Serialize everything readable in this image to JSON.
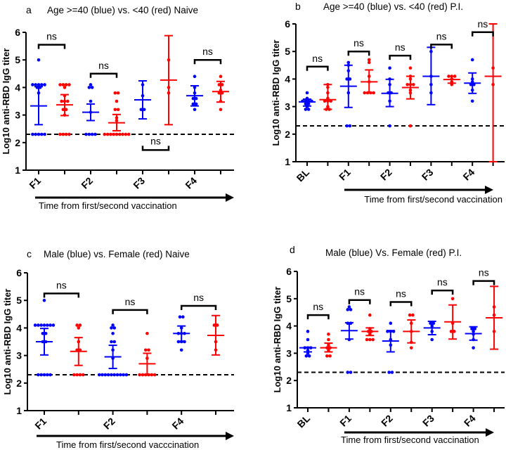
{
  "colors": {
    "blue": "#0000ff",
    "red": "#ff0000",
    "axis": "#000000"
  },
  "chart_data": [
    {
      "type": "scatter",
      "letter": "a",
      "title": "Age >=40 (blue) vs. <40 (red) Naive",
      "ylabel": "Log10 anti-RBD IgG titer",
      "xlabel": "Time from first/second vaccination",
      "ylim": [
        1,
        6
      ],
      "yticks": [
        "1",
        "2",
        "3",
        "4",
        "5",
        "6"
      ],
      "detection_limit": 2.3,
      "groups": [
        {
          "label": "F1",
          "color": "blue",
          "mean": 3.33,
          "sd": [
            2.65,
            4.03
          ],
          "points": [
            2.3,
            2.3,
            2.3,
            2.3,
            2.3,
            3.8,
            4.0,
            4.0,
            4.1,
            4.1,
            4.1,
            4.1,
            4.1,
            5.0
          ]
        },
        {
          "label": "",
          "color": "red",
          "mean": 3.37,
          "sd": [
            2.98,
            3.74
          ],
          "points": [
            2.3,
            2.3,
            2.3,
            2.3,
            3.0,
            3.2,
            3.2,
            3.5,
            3.5,
            3.5,
            3.7,
            4.0,
            4.1,
            4.1,
            4.1,
            4.1
          ]
        },
        {
          "label": "F2",
          "color": "blue",
          "mean": 3.1,
          "sd": [
            2.8,
            3.4
          ],
          "points": [
            2.3,
            2.3,
            2.3,
            2.3,
            3.1,
            3.5,
            4.0,
            4.0,
            4.1
          ]
        },
        {
          "label": "",
          "color": "red",
          "mean": 2.72,
          "sd": [
            2.43,
            3.02
          ],
          "points": [
            2.3,
            2.3,
            2.3,
            2.3,
            2.3,
            2.3,
            2.3,
            2.3,
            2.3,
            2.8,
            2.9,
            3.2,
            3.2,
            3.5,
            3.8,
            3.8
          ]
        },
        {
          "label": "F3",
          "color": "blue",
          "mean": 3.55,
          "sd": [
            2.86,
            4.24
          ],
          "points": [
            3.2,
            3.2,
            3.7,
            4.1
          ]
        },
        {
          "label": "",
          "color": "red",
          "mean": 4.27,
          "sd": [
            2.65,
            5.88
          ],
          "points": [
            3.8,
            4.0,
            5.0
          ]
        },
        {
          "label": "F4",
          "color": "blue",
          "mean": 3.7,
          "sd": [
            3.33,
            4.06
          ],
          "points": [
            3.2,
            3.4,
            3.4,
            3.6,
            3.6,
            3.8,
            4.0,
            4.4
          ]
        },
        {
          "label": "",
          "color": "red",
          "mean": 3.85,
          "sd": [
            3.47,
            4.22
          ],
          "points": [
            3.2,
            3.5,
            3.8,
            3.8,
            3.9,
            4.1,
            4.1,
            4.4
          ]
        }
      ],
      "comparisons": [
        {
          "pair": [
            0,
            1
          ],
          "y": 5.55,
          "label": "ns",
          "inverted": false
        },
        {
          "pair": [
            2,
            3
          ],
          "y": 4.5,
          "label": "ns",
          "inverted": false
        },
        {
          "pair": [
            4,
            5
          ],
          "y": 1.73,
          "label": "ns",
          "inverted": true
        },
        {
          "pair": [
            6,
            7
          ],
          "y": 5.0,
          "label": "ns",
          "inverted": false
        }
      ]
    },
    {
      "type": "scatter",
      "letter": "b",
      "title": "Age >=40 (blue) vs. <40 (red) P.I.",
      "ylabel": "Log10 anti-RBD IgG titer",
      "xlabel": "Time from first/second vaccination",
      "ylim": [
        1,
        6
      ],
      "yticks": [
        "1",
        "2",
        "3",
        "4",
        "5",
        "6"
      ],
      "detection_limit": 2.3,
      "groups": [
        {
          "label": "BL",
          "color": "blue",
          "mean": 3.17,
          "sd": [
            3.02,
            3.27
          ],
          "points": [
            2.9,
            2.9,
            3.0,
            3.1,
            3.1,
            3.2,
            3.2,
            3.2,
            3.2,
            3.3,
            3.5
          ]
        },
        {
          "label": "",
          "color": "red",
          "mean": 3.25,
          "sd": [
            2.9,
            3.8
          ],
          "points": [
            2.9,
            2.9,
            3.0,
            3.2,
            3.2,
            3.2,
            3.3,
            3.5,
            3.7,
            3.8
          ]
        },
        {
          "label": "F1",
          "color": "blue",
          "mean": 3.74,
          "sd": [
            2.97,
            4.5
          ],
          "points": [
            2.3,
            2.3,
            3.5,
            4.0,
            4.0,
            4.3,
            4.5,
            4.6
          ]
        },
        {
          "label": "",
          "color": "red",
          "mean": 3.9,
          "sd": [
            3.5,
            4.33
          ],
          "points": [
            3.5,
            3.5,
            3.5,
            3.5,
            3.9,
            4.1,
            4.6,
            4.7
          ]
        },
        {
          "label": "F2",
          "color": "blue",
          "mean": 3.48,
          "sd": [
            3.0,
            3.99
          ],
          "points": [
            2.3,
            3.2,
            3.5,
            3.5,
            3.8,
            4.0,
            4.4
          ]
        },
        {
          "label": "",
          "color": "red",
          "mean": 3.69,
          "sd": [
            3.28,
            4.1
          ],
          "points": [
            2.3,
            3.5,
            3.6,
            3.8,
            3.8,
            3.8,
            4.0,
            4.1,
            4.4
          ]
        },
        {
          "label": "F3",
          "color": "blue",
          "mean": 4.1,
          "sd": [
            3.07,
            5.15
          ],
          "points": [
            3.5,
            3.8,
            4.1,
            5.0
          ]
        },
        {
          "label": "",
          "color": "red",
          "mean": 3.98,
          "sd": [
            3.85,
            4.1
          ],
          "points": [
            3.8,
            3.9,
            4.0,
            4.1,
            4.1,
            4.1
          ]
        },
        {
          "label": "F4",
          "color": "blue",
          "mean": 3.85,
          "sd": [
            3.48,
            4.22
          ],
          "points": [
            3.2,
            3.6,
            3.8,
            3.8,
            3.9,
            4.0,
            4.7
          ]
        },
        {
          "label": "",
          "color": "red",
          "mean": 4.1,
          "sd": [
            1.0,
            6.0
          ],
          "points": [
            3.8,
            4.4
          ]
        }
      ],
      "comparisons": [
        {
          "pair": [
            0,
            1
          ],
          "y": 4.45,
          "label": "ns",
          "inverted": false
        },
        {
          "pair": [
            2,
            3
          ],
          "y": 5.0,
          "label": "ns",
          "inverted": false
        },
        {
          "pair": [
            4,
            5
          ],
          "y": 4.85,
          "label": "ns",
          "inverted": false
        },
        {
          "pair": [
            6,
            7
          ],
          "y": 5.25,
          "label": "ns",
          "inverted": false
        },
        {
          "pair": [
            8,
            9
          ],
          "y": 5.7,
          "label": "ns",
          "inverted": false
        }
      ]
    },
    {
      "type": "scatter",
      "letter": "c",
      "title": "Male (blue) vs. Female (red) Naive",
      "ylabel": "Log10 anti-RBD IgG titer",
      "xlabel": "Time from first/second vacccination",
      "ylim": [
        1,
        6
      ],
      "yticks": [
        "1",
        "2",
        "3",
        "4",
        "5",
        "6"
      ],
      "detection_limit": 2.3,
      "groups": [
        {
          "label": "F1",
          "color": "blue",
          "mean": 3.5,
          "sd": [
            3.02,
            3.98
          ],
          "points": [
            2.3,
            2.3,
            2.3,
            2.3,
            2.3,
            3.5,
            3.5,
            3.8,
            3.8,
            4.1,
            4.1,
            4.1,
            4.1,
            4.1,
            4.1,
            4.1,
            5.0
          ]
        },
        {
          "label": "",
          "color": "red",
          "mean": 3.15,
          "sd": [
            2.64,
            3.65
          ],
          "points": [
            2.3,
            2.3,
            2.3,
            2.3,
            3.2,
            3.2,
            3.5,
            4.0,
            4.1,
            4.1
          ]
        },
        {
          "label": "F2",
          "color": "blue",
          "mean": 2.95,
          "sd": [
            2.53,
            3.37
          ],
          "points": [
            2.3,
            2.3,
            2.3,
            2.3,
            2.3,
            2.3,
            2.3,
            2.3,
            2.3,
            2.3,
            2.9,
            3.2,
            3.5,
            3.5,
            3.8,
            4.0,
            4.0,
            4.1
          ]
        },
        {
          "label": "",
          "color": "red",
          "mean": 2.7,
          "sd": [
            2.3,
            3.08
          ],
          "points": [
            2.3,
            2.3,
            2.3,
            2.3,
            2.3,
            2.3,
            2.9,
            3.2,
            3.2,
            3.8
          ]
        },
        {
          "label": "F4",
          "color": "blue",
          "mean": 3.8,
          "sd": [
            3.52,
            4.07
          ],
          "points": [
            3.2,
            3.5,
            3.5,
            3.5,
            3.8,
            3.8,
            3.8,
            4.0,
            4.4,
            4.4
          ]
        },
        {
          "label": "",
          "color": "red",
          "mean": 3.73,
          "sd": [
            3.02,
            4.45
          ],
          "points": [
            3.2,
            3.5,
            4.1,
            4.1
          ]
        }
      ],
      "comparisons": [
        {
          "pair": [
            0,
            1
          ],
          "y": 5.25,
          "label": "ns",
          "inverted": false
        },
        {
          "pair": [
            2,
            3
          ],
          "y": 4.65,
          "label": "ns",
          "inverted": false
        },
        {
          "pair": [
            4,
            5
          ],
          "y": 4.8,
          "label": "ns",
          "inverted": false
        }
      ]
    },
    {
      "type": "scatter",
      "letter": "d",
      "title": "Male (blue) Vs. Female (red)  P.I.",
      "ylabel": "Log10 anti-RBD IgG titer",
      "xlabel": "Time from first/second vaccination",
      "ylim": [
        1,
        6
      ],
      "yticks": [
        "1",
        "2",
        "3",
        "4",
        "5",
        "6"
      ],
      "detection_limit": 2.3,
      "groups": [
        {
          "label": "BL",
          "color": "blue",
          "mean": 3.2,
          "sd": [
            3.05,
            3.22
          ],
          "points": [
            2.9,
            2.9,
            3.0,
            3.1,
            3.2,
            3.2,
            3.2,
            3.5,
            3.8
          ]
        },
        {
          "label": "",
          "color": "red",
          "mean": 3.2,
          "sd": [
            3.05,
            3.37
          ],
          "points": [
            2.9,
            2.9,
            3.1,
            3.2,
            3.2,
            3.3,
            3.5,
            3.7
          ]
        },
        {
          "label": "F1",
          "color": "blue",
          "mean": 3.83,
          "sd": [
            3.52,
            4.12
          ],
          "points": [
            2.3,
            2.3,
            3.5,
            4.1,
            4.1,
            4.6,
            4.6,
            4.7
          ]
        },
        {
          "label": "",
          "color": "red",
          "mean": 3.8,
          "sd": [
            3.65,
            3.93
          ],
          "points": [
            3.5,
            3.5,
            3.5,
            3.7,
            3.8,
            3.8,
            3.9,
            4.4
          ]
        },
        {
          "label": "F2",
          "color": "blue",
          "mean": 3.45,
          "sd": [
            3.05,
            3.83
          ],
          "points": [
            2.3,
            2.3,
            3.3,
            3.5,
            3.8,
            3.8,
            3.8,
            4.1
          ]
        },
        {
          "label": "",
          "color": "red",
          "mean": 3.8,
          "sd": [
            3.38,
            4.22
          ],
          "points": [
            3.2,
            3.4,
            3.8,
            4.1,
            4.4,
            4.4
          ]
        },
        {
          "label": "F3",
          "color": "blue",
          "mean": 3.93,
          "sd": [
            3.68,
            4.17
          ],
          "points": [
            3.5,
            3.8,
            4.0,
            4.1,
            4.1
          ]
        },
        {
          "label": "",
          "color": "red",
          "mean": 4.15,
          "sd": [
            3.52,
            4.77
          ],
          "points": [
            3.8,
            3.8,
            4.1,
            5.0
          ]
        },
        {
          "label": "F4",
          "color": "blue",
          "mean": 3.72,
          "sd": [
            3.48,
            3.97
          ],
          "points": [
            3.2,
            3.5,
            3.7,
            3.8,
            3.9,
            3.9
          ]
        },
        {
          "label": "",
          "color": "red",
          "mean": 4.3,
          "sd": [
            3.15,
            5.45
          ],
          "points": [
            3.8,
            4.4,
            4.7
          ]
        }
      ],
      "comparisons": [
        {
          "pair": [
            0,
            1
          ],
          "y": 4.4,
          "label": "ns",
          "inverted": false
        },
        {
          "pair": [
            2,
            3
          ],
          "y": 4.95,
          "label": "ns",
          "inverted": false
        },
        {
          "pair": [
            4,
            5
          ],
          "y": 4.88,
          "label": "ns",
          "inverted": false
        },
        {
          "pair": [
            6,
            7
          ],
          "y": 5.3,
          "label": "ns",
          "inverted": false
        },
        {
          "pair": [
            8,
            9
          ],
          "y": 5.65,
          "label": "ns",
          "inverted": false
        }
      ]
    }
  ]
}
